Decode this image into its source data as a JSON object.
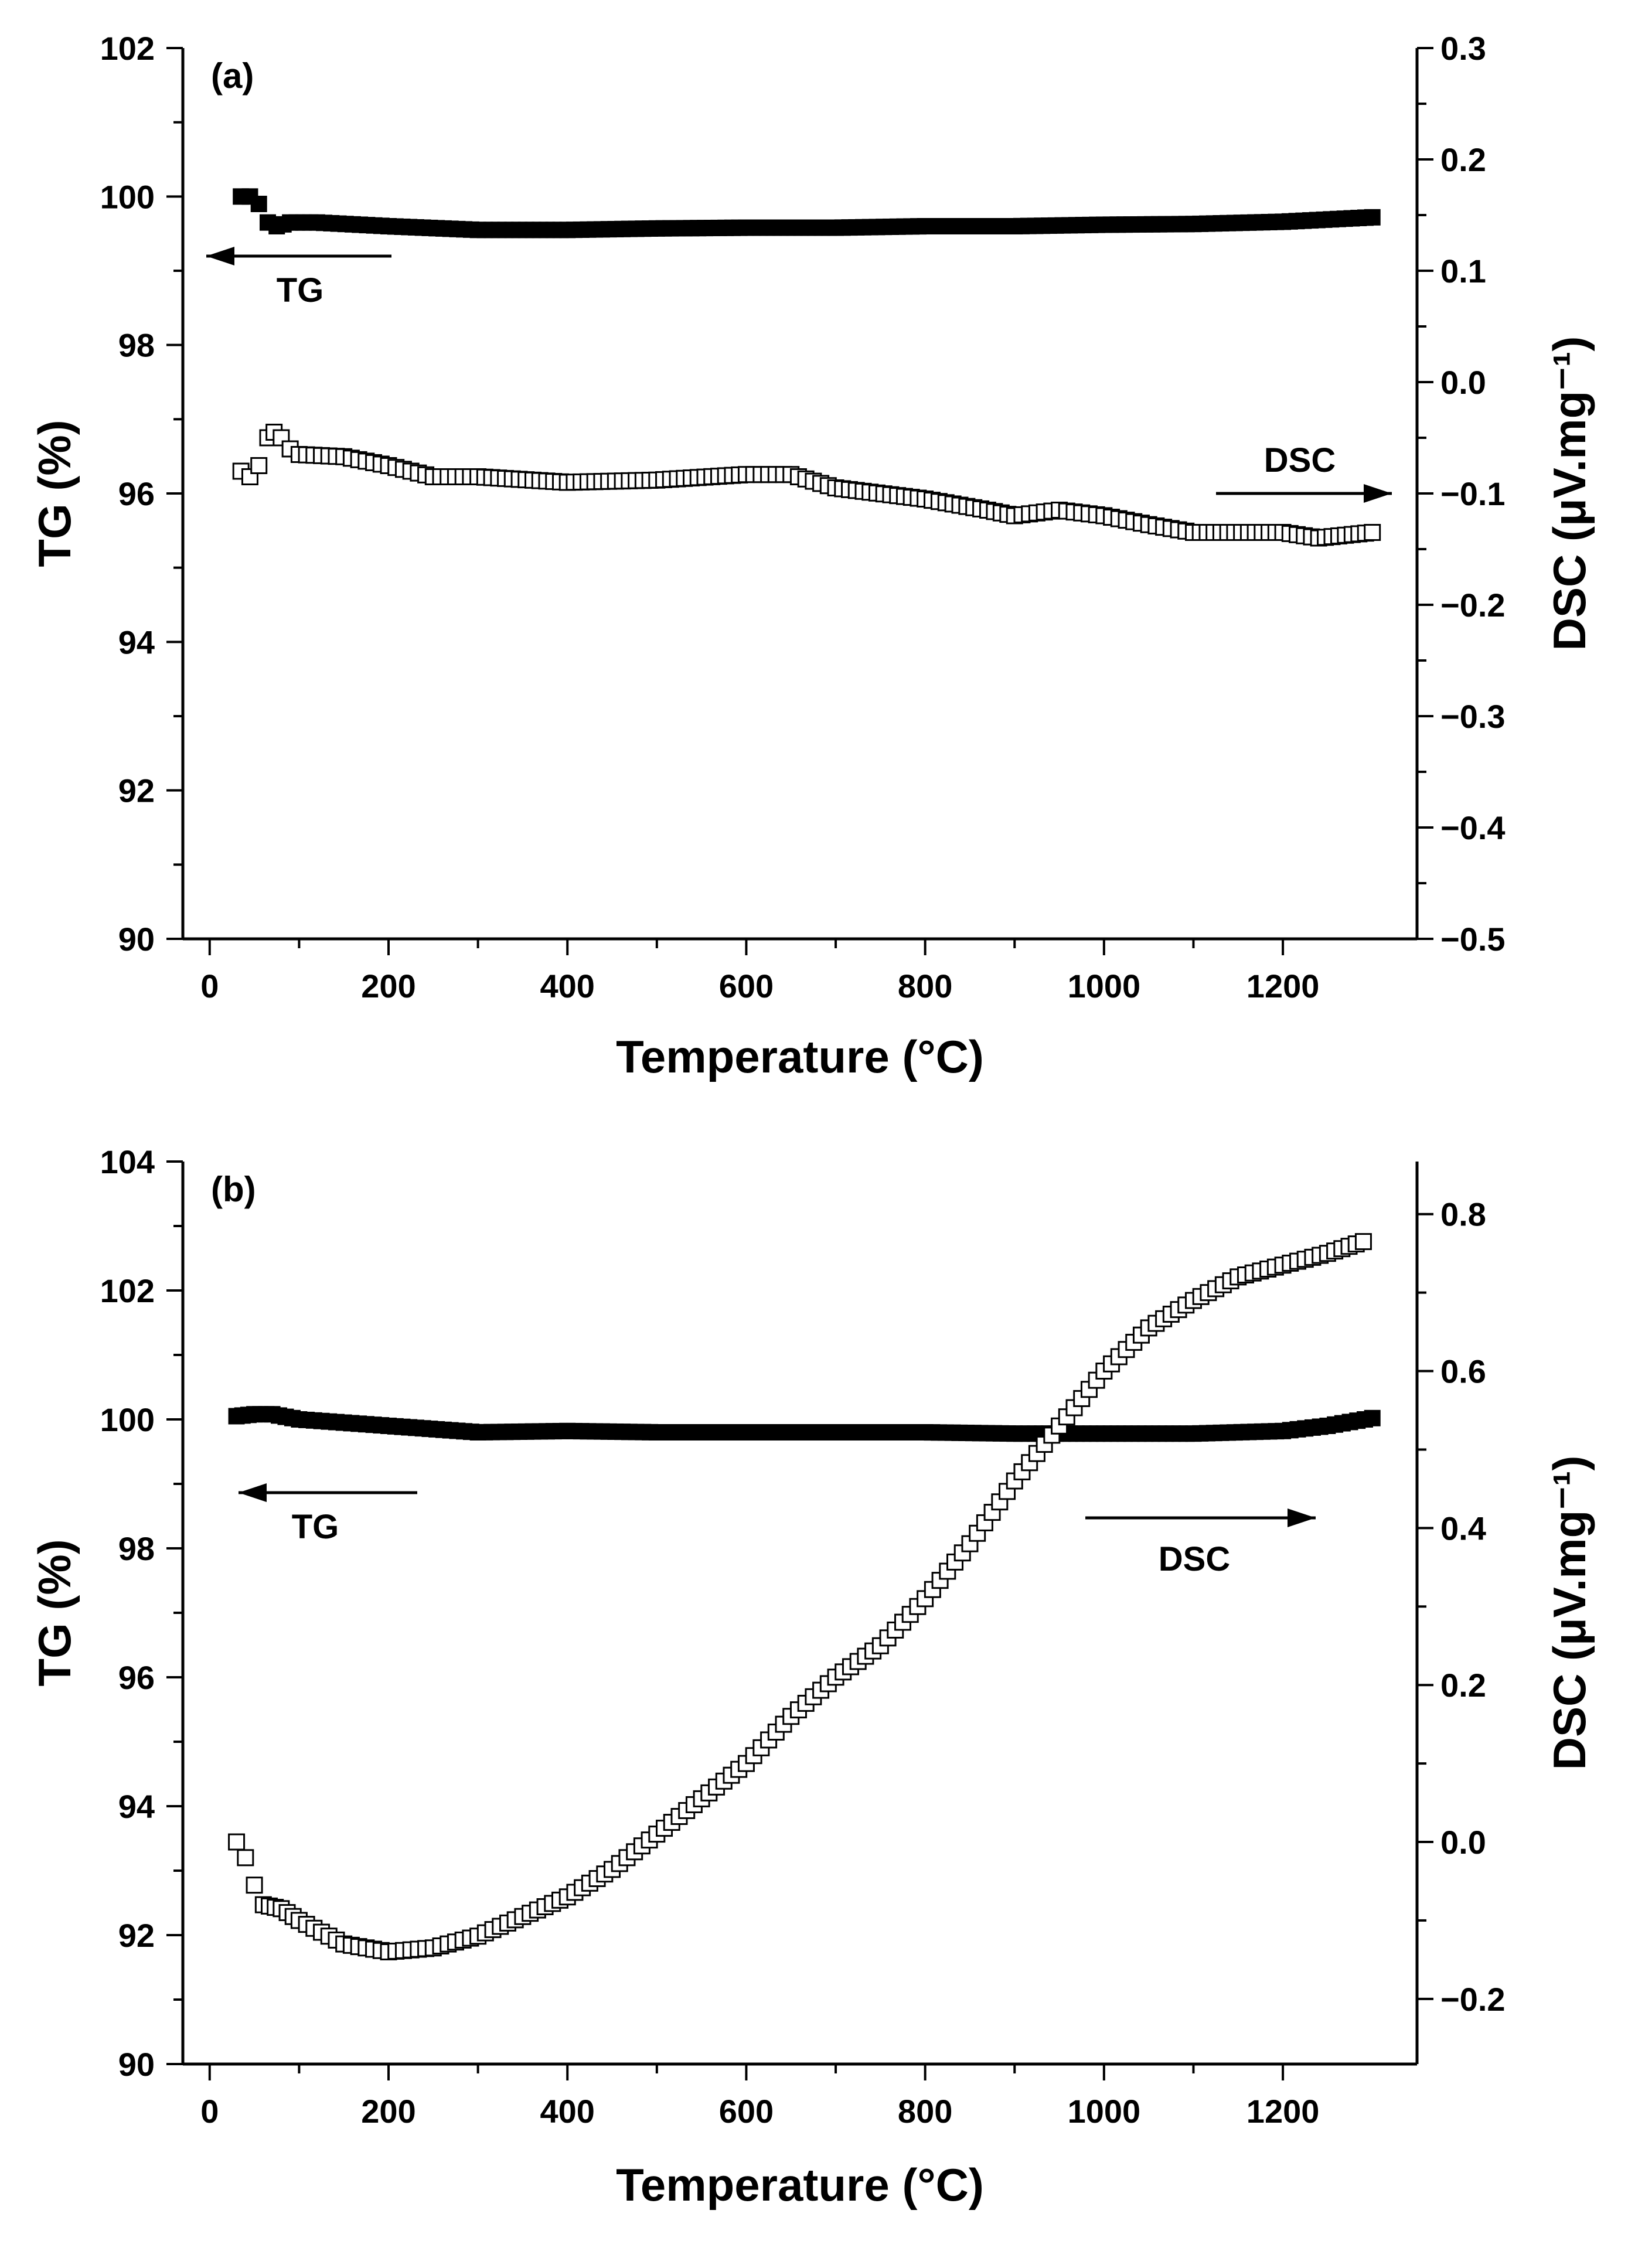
{
  "chart_data": [
    {
      "type": "scatter",
      "panel_label": "(a)",
      "xlabel": "Temperature (°C)",
      "ylabel_left": "TG (%)",
      "ylabel_right": "DSC (μV.mg⁻¹)",
      "xlim": [
        -30,
        1350
      ],
      "ylim_left": [
        90,
        102
      ],
      "ylim_right": [
        -0.5,
        0.3
      ],
      "x_ticks": [
        0,
        200,
        400,
        600,
        800,
        1000,
        1200
      ],
      "y_left_ticks": [
        90,
        92,
        94,
        96,
        98,
        100,
        102
      ],
      "y_right_ticks": [
        -0.5,
        -0.4,
        -0.3,
        -0.2,
        -0.1,
        0.0,
        0.1,
        0.2,
        0.3
      ],
      "y_right_tick_labels": [
        "−0.5",
        "−0.4",
        "−0.3",
        "−0.2",
        "−0.1",
        "0.0",
        "0.1",
        "0.2",
        "0.3"
      ],
      "annotations": [
        {
          "text": "TG",
          "arrow": "left",
          "axis": "left"
        },
        {
          "text": "DSC",
          "arrow": "right",
          "axis": "right"
        }
      ],
      "series": [
        {
          "name": "TG",
          "axis": "left",
          "marker": "filled-square",
          "points": [
            [
              35,
              100.0
            ],
            [
              45,
              100.0
            ],
            [
              55,
              99.9
            ],
            [
              65,
              99.65
            ],
            [
              75,
              99.6
            ],
            [
              90,
              99.65
            ],
            [
              120,
              99.65
            ],
            [
              200,
              99.6
            ],
            [
              300,
              99.55
            ],
            [
              400,
              99.55
            ],
            [
              500,
              99.57
            ],
            [
              600,
              99.58
            ],
            [
              700,
              99.58
            ],
            [
              800,
              99.6
            ],
            [
              900,
              99.6
            ],
            [
              1000,
              99.62
            ],
            [
              1100,
              99.63
            ],
            [
              1200,
              99.66
            ],
            [
              1300,
              99.72
            ]
          ]
        },
        {
          "name": "DSC",
          "axis": "right",
          "marker": "open-square",
          "points": [
            [
              35,
              -0.08
            ],
            [
              45,
              -0.085
            ],
            [
              55,
              -0.075
            ],
            [
              65,
              -0.05
            ],
            [
              72,
              -0.045
            ],
            [
              80,
              -0.05
            ],
            [
              90,
              -0.06
            ],
            [
              100,
              -0.065
            ],
            [
              150,
              -0.067
            ],
            [
              200,
              -0.075
            ],
            [
              250,
              -0.085
            ],
            [
              300,
              -0.085
            ],
            [
              400,
              -0.09
            ],
            [
              500,
              -0.088
            ],
            [
              600,
              -0.083
            ],
            [
              650,
              -0.083
            ],
            [
              700,
              -0.095
            ],
            [
              800,
              -0.105
            ],
            [
              870,
              -0.115
            ],
            [
              900,
              -0.12
            ],
            [
              950,
              -0.115
            ],
            [
              1000,
              -0.12
            ],
            [
              1050,
              -0.128
            ],
            [
              1100,
              -0.135
            ],
            [
              1200,
              -0.135
            ],
            [
              1240,
              -0.14
            ],
            [
              1300,
              -0.135
            ]
          ]
        }
      ]
    },
    {
      "type": "scatter",
      "panel_label": "(b)",
      "xlabel": "Temperature (°C)",
      "ylabel_left": "TG (%)",
      "ylabel_right": "DSC (μV.mg⁻¹)",
      "xlim": [
        -30,
        1350
      ],
      "ylim_left": [
        90,
        104
      ],
      "ylim_right": [
        -0.283,
        0.867
      ],
      "x_ticks": [
        0,
        200,
        400,
        600,
        800,
        1000,
        1200
      ],
      "y_left_ticks": [
        90,
        92,
        94,
        96,
        98,
        100,
        102,
        104
      ],
      "y_right_ticks": [
        -0.2,
        0.0,
        0.2,
        0.4,
        0.6,
        0.8
      ],
      "y_right_tick_labels": [
        "−0.2",
        "0.0",
        "0.2",
        "0.4",
        "0.6",
        "0.8"
      ],
      "annotations": [
        {
          "text": "TG",
          "arrow": "left",
          "axis": "left"
        },
        {
          "text": "DSC",
          "arrow": "right",
          "axis": "right"
        }
      ],
      "series": [
        {
          "name": "TG",
          "axis": "left",
          "marker": "filled-square",
          "points": [
            [
              30,
              100.05
            ],
            [
              50,
              100.08
            ],
            [
              70,
              100.08
            ],
            [
              100,
              100.0
            ],
            [
              150,
              99.95
            ],
            [
              200,
              99.9
            ],
            [
              300,
              99.8
            ],
            [
              400,
              99.82
            ],
            [
              500,
              99.8
            ],
            [
              600,
              99.8
            ],
            [
              700,
              99.8
            ],
            [
              800,
              99.8
            ],
            [
              900,
              99.78
            ],
            [
              1000,
              99.78
            ],
            [
              1100,
              99.78
            ],
            [
              1200,
              99.82
            ],
            [
              1250,
              99.9
            ],
            [
              1300,
              100.02
            ]
          ]
        },
        {
          "name": "DSC",
          "axis": "right",
          "marker": "open-square",
          "points": [
            [
              30,
              0.0
            ],
            [
              40,
              -0.02
            ],
            [
              50,
              -0.055
            ],
            [
              60,
              -0.08
            ],
            [
              80,
              -0.085
            ],
            [
              100,
              -0.1
            ],
            [
              150,
              -0.13
            ],
            [
              200,
              -0.14
            ],
            [
              250,
              -0.135
            ],
            [
              300,
              -0.12
            ],
            [
              350,
              -0.095
            ],
            [
              400,
              -0.07
            ],
            [
              450,
              -0.035
            ],
            [
              500,
              0.01
            ],
            [
              550,
              0.055
            ],
            [
              600,
              0.1
            ],
            [
              650,
              0.16
            ],
            [
              700,
              0.21
            ],
            [
              750,
              0.25
            ],
            [
              800,
              0.31
            ],
            [
              850,
              0.38
            ],
            [
              900,
              0.46
            ],
            [
              950,
              0.53
            ],
            [
              1000,
              0.6
            ],
            [
              1050,
              0.655
            ],
            [
              1100,
              0.69
            ],
            [
              1150,
              0.72
            ],
            [
              1200,
              0.735
            ],
            [
              1250,
              0.75
            ],
            [
              1290,
              0.765
            ]
          ]
        }
      ]
    }
  ]
}
